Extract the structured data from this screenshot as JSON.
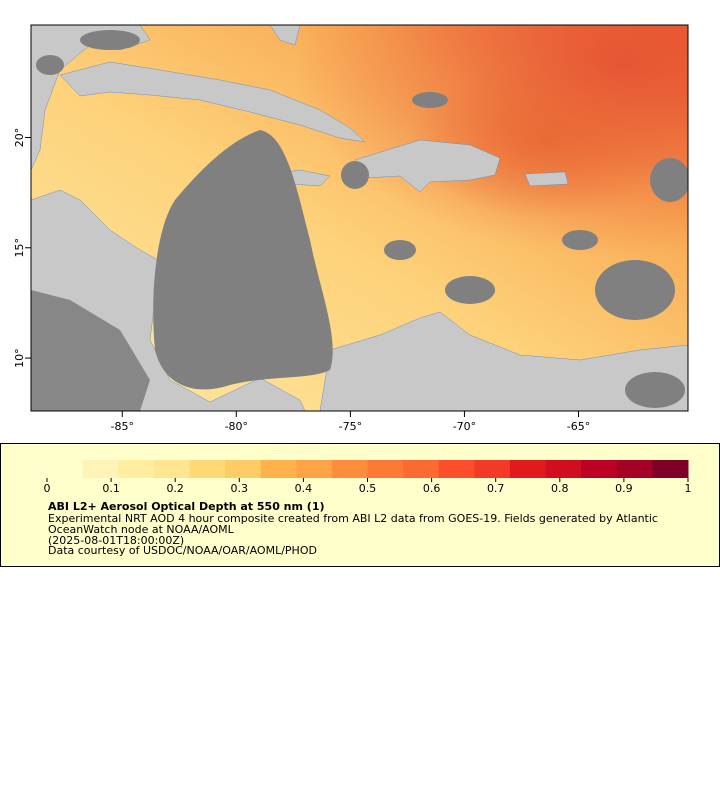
{
  "map": {
    "xlim": [
      -89,
      -60.2
    ],
    "ylim": [
      7.6,
      25.1
    ],
    "xticks": [
      {
        "value": -85,
        "label": "-85°"
      },
      {
        "value": -80,
        "label": "-80°"
      },
      {
        "value": -75,
        "label": "-75°"
      },
      {
        "value": -70,
        "label": "-70°"
      },
      {
        "value": -65,
        "label": "-65°"
      }
    ],
    "yticks": [
      {
        "value": 10,
        "label": "10°"
      },
      {
        "value": 15,
        "label": "15°"
      },
      {
        "value": 20,
        "label": "20°"
      }
    ]
  },
  "legend": {
    "colorbar": {
      "lim": [
        0,
        1
      ],
      "ticks": [
        0,
        0.1,
        0.2,
        0.3,
        0.4,
        0.5,
        0.6,
        0.7,
        0.8,
        0.9,
        1
      ],
      "colors": [
        "#ffffcc",
        "#fff3b7",
        "#ffeda0",
        "#fee591",
        "#fed976",
        "#fecc66",
        "#feb24c",
        "#fea446",
        "#fd8d3c",
        "#fc7a36",
        "#fc6a31",
        "#fc4e2a",
        "#f23a26",
        "#e31a1c",
        "#d00d21",
        "#bd0026",
        "#a50026",
        "#800026"
      ]
    },
    "title": "ABI L2+ Aerosol Optical Depth at 550 nm (1)",
    "lines": [
      "Experimental NRT AOD 4 hour composite created from ABI L2 data from GOES-19. Fields generated by Atlantic",
      "OceanWatch node at NOAA/AOML",
      "(2025-08-01T18:00:00Z)",
      "Data courtesy of USDOC/NOAA/OAR/AOML/PHOD"
    ]
  }
}
